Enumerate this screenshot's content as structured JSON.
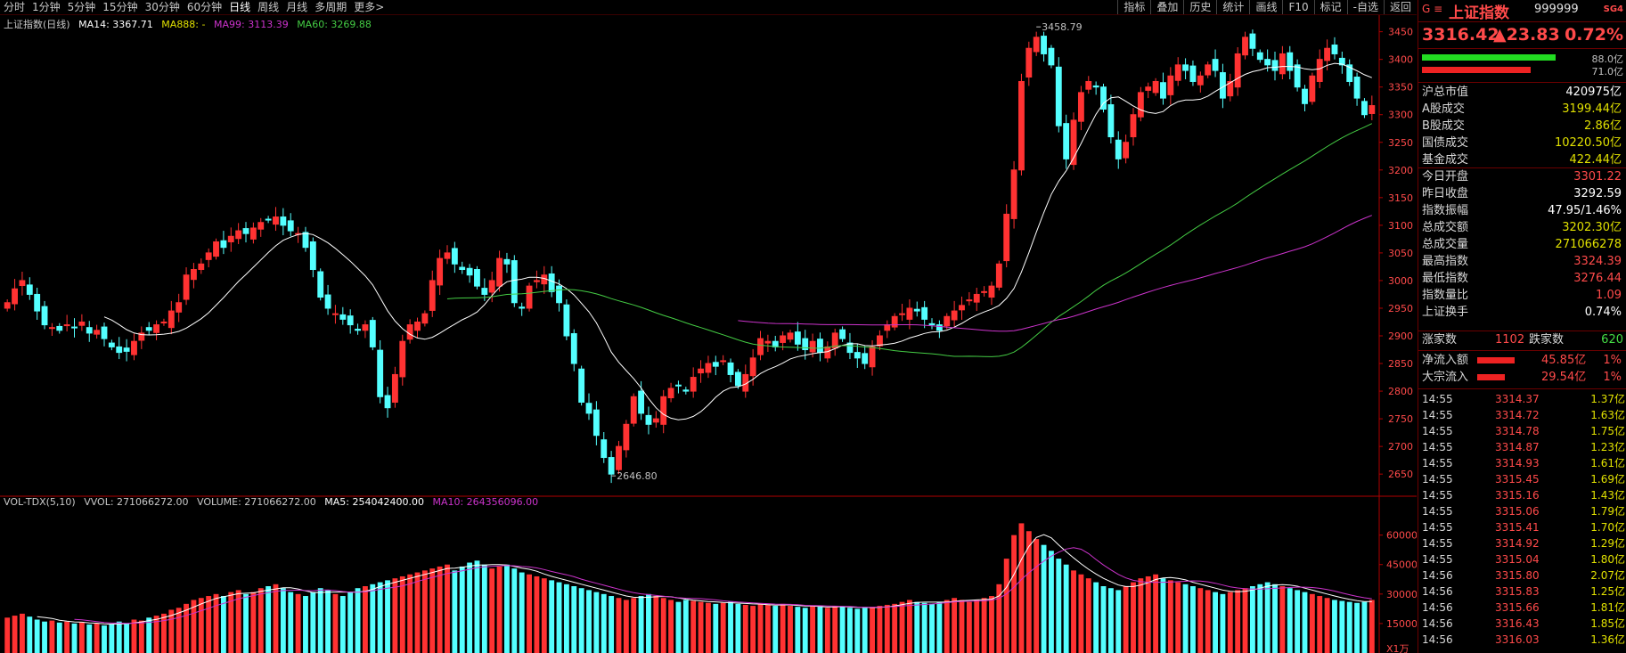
{
  "toolbar": {
    "periods": [
      "分时",
      "1分钟",
      "5分钟",
      "15分钟",
      "30分钟",
      "60分钟",
      "日线",
      "周线",
      "月线",
      "多周期",
      "更多>"
    ],
    "active_period": "日线",
    "tools": [
      "指标",
      "叠加",
      "历史",
      "统计",
      "画线",
      "F10",
      "标记",
      "-自选",
      "返回"
    ]
  },
  "legend": {
    "name": "上证指数(日线)",
    "ma14": "MA14: 3367.71",
    "ma888": "MA888: -",
    "ma99": "MA99: 3113.39",
    "ma60": "MA60: 3269.88"
  },
  "vol_legend": {
    "name": "VOL-TDX(5,10)",
    "vvol": "VVOL: 271066272.00",
    "volume": "VOLUME: 271066272.00",
    "ma5": "MA5: 254042400.00",
    "ma10": "MA10: 264356096.00",
    "unit": "X1万"
  },
  "colors": {
    "up": "#ff3232",
    "down": "#54ffff",
    "ma14": "#ffffff",
    "ma60": "#44cc44",
    "ma99": "#cc33cc",
    "axis": "#b00000"
  },
  "annotations": {
    "high": "3458.79",
    "low": "2646.80"
  },
  "chart_data": {
    "type": "candlestick",
    "title": "上证指数(日线)",
    "price_axis": {
      "ticks": [
        2650,
        2700,
        2750,
        2800,
        2850,
        2900,
        2950,
        3000,
        3050,
        3100,
        3150,
        3200,
        3250,
        3300,
        3350,
        3400,
        3450
      ],
      "ylim": [
        2610,
        3480
      ]
    },
    "volume_axis": {
      "ticks": [
        15000,
        30000,
        45000,
        60000
      ],
      "ylim": [
        0,
        68000
      ],
      "unit": "X1万"
    },
    "close": [
      2960,
      2985,
      3000,
      2975,
      2945,
      2920,
      2915,
      2910,
      2920,
      2915,
      2925,
      2905,
      2910,
      2895,
      2880,
      2870,
      2872,
      2890,
      2905,
      2910,
      2920,
      2925,
      2945,
      2960,
      3010,
      3020,
      3030,
      3050,
      3070,
      3060,
      3080,
      3090,
      3085,
      3095,
      3105,
      3110,
      3115,
      3100,
      3090,
      3085,
      3060,
      3020,
      2970,
      2950,
      2940,
      2930,
      2920,
      2910,
      2920,
      2880,
      2790,
      2770,
      2830,
      2890,
      2920,
      2925,
      2940,
      3000,
      3040,
      3050,
      3030,
      3020,
      3010,
      2990,
      2975,
      3000,
      3040,
      3030,
      2960,
      2950,
      2990,
      3000,
      3010,
      2980,
      2960,
      2900,
      2850,
      2780,
      2760,
      2720,
      2680,
      2650,
      2700,
      2740,
      2790,
      2760,
      2740,
      2750,
      2790,
      2805,
      2810,
      2800,
      2825,
      2840,
      2850,
      2845,
      2855,
      2830,
      2810,
      2830,
      2860,
      2895,
      2890,
      2880,
      2900,
      2905,
      2885,
      2875,
      2890,
      2870,
      2880,
      2905,
      2895,
      2870,
      2860,
      2850,
      2880,
      2900,
      2920,
      2935,
      2940,
      2950,
      2945,
      2930,
      2920,
      2910,
      2935,
      2945,
      2955,
      2965,
      2975,
      2980,
      2990,
      3030,
      3120,
      3200,
      3360,
      3420,
      3440,
      3410,
      3390,
      3280,
      3220,
      3290,
      3340,
      3360,
      3350,
      3310,
      3260,
      3220,
      3250,
      3300,
      3340,
      3350,
      3360,
      3330,
      3370,
      3390,
      3380,
      3360,
      3370,
      3390,
      3380,
      3330,
      3360,
      3410,
      3440,
      3420,
      3400,
      3390,
      3380,
      3410,
      3380,
      3350,
      3320,
      3370,
      3400,
      3420,
      3410,
      3390,
      3360,
      3330,
      3300,
      3316.42
    ],
    "volume": [
      18000,
      19000,
      20000,
      18500,
      17000,
      16000,
      16500,
      15500,
      16000,
      15000,
      15500,
      14500,
      15000,
      14000,
      14500,
      16000,
      15000,
      17000,
      16500,
      18000,
      19000,
      20000,
      22000,
      23000,
      25000,
      27000,
      28000,
      29000,
      30000,
      29000,
      31000,
      32000,
      30000,
      31000,
      33000,
      34000,
      35000,
      33000,
      31000,
      30000,
      29000,
      31000,
      33000,
      32000,
      30000,
      29000,
      31000,
      33000,
      34000,
      35000,
      36000,
      37000,
      38000,
      39000,
      40000,
      41000,
      42000,
      43000,
      44000,
      45000,
      42000,
      44000,
      46000,
      47000,
      45000,
      43000,
      44000,
      45000,
      43000,
      41000,
      40000,
      39000,
      38000,
      37000,
      36000,
      35000,
      34000,
      33000,
      32000,
      31000,
      30000,
      29000,
      28000,
      27000,
      28000,
      29000,
      30000,
      29000,
      28000,
      27000,
      26000,
      27000,
      26500,
      26000,
      25500,
      25000,
      25500,
      26000,
      25000,
      24500,
      24000,
      25000,
      24500,
      24000,
      25000,
      24000,
      23500,
      23000,
      24000,
      23500,
      23000,
      24000,
      23500,
      23000,
      22500,
      23000,
      23500,
      24000,
      24500,
      25000,
      26000,
      27000,
      26000,
      25500,
      25000,
      26000,
      27000,
      28000,
      27000,
      26000,
      27000,
      28000,
      29000,
      35000,
      48000,
      60000,
      66000,
      62000,
      58000,
      55000,
      52000,
      48000,
      45000,
      42000,
      40000,
      38000,
      36000,
      34000,
      33000,
      32000,
      34000,
      36000,
      38000,
      39000,
      40000,
      38000,
      37000,
      36000,
      35000,
      34000,
      33000,
      32000,
      31000,
      30000,
      31000,
      32000,
      33000,
      34000,
      35000,
      36000,
      35000,
      34000,
      33000,
      32000,
      31000,
      30000,
      29000,
      28000,
      27000,
      26500,
      26000,
      25500,
      26000,
      27000
    ]
  },
  "rpanel": {
    "name": "上证指数",
    "code": "999999",
    "marker": "G ≡",
    "tag": "SG4",
    "price": "3316.42",
    "change": "▲23.83",
    "pct": "0.72%",
    "bar1_val": "88.0亿",
    "bar2_val": "71.0亿",
    "bar1_fill": 1.0,
    "bar2_fill": 0.81,
    "stats": [
      {
        "k": "沪总市值",
        "v": "420975亿",
        "c": "#ffffff"
      },
      {
        "k": "A股成交",
        "v": "3199.44亿",
        "c": "#e0e000"
      },
      {
        "k": "B股成交",
        "v": "2.86亿",
        "c": "#e0e000"
      },
      {
        "k": "国债成交",
        "v": "10220.50亿",
        "c": "#e0e000"
      },
      {
        "k": "基金成交",
        "v": "422.44亿",
        "c": "#e0e000"
      },
      {
        "k": "今日开盘",
        "v": "3301.22",
        "c": "#ff4a4a"
      },
      {
        "k": "昨日收盘",
        "v": "3292.59",
        "c": "#ffffff"
      },
      {
        "k": "指数振幅",
        "v": "47.95/1.46%",
        "c": "#ffffff"
      },
      {
        "k": "总成交额",
        "v": "3202.30亿",
        "c": "#e0e000"
      },
      {
        "k": "总成交量",
        "v": "271066278",
        "c": "#e0e000"
      },
      {
        "k": "最高指数",
        "v": "3324.39",
        "c": "#ff4a4a"
      },
      {
        "k": "最低指数",
        "v": "3276.44",
        "c": "#ff4a4a"
      },
      {
        "k": "指数量比",
        "v": "1.09",
        "c": "#ff4a4a"
      },
      {
        "k": "上证换手",
        "v": "0.74%",
        "c": "#ffffff"
      }
    ],
    "updown": {
      "up_label": "涨家数",
      "up": "1102",
      "down_label": "跌家数",
      "down": "620"
    },
    "flows": [
      {
        "k": "净流入额",
        "v": "45.85亿",
        "p": "1%",
        "fill": 0.75
      },
      {
        "k": "大宗流入",
        "v": "29.54亿",
        "p": "1%",
        "fill": 0.55
      }
    ],
    "ticks": [
      {
        "t": "14:55",
        "p": "3314.37",
        "q": "1.37亿"
      },
      {
        "t": "14:55",
        "p": "3314.72",
        "q": "1.63亿"
      },
      {
        "t": "14:55",
        "p": "3314.78",
        "q": "1.75亿"
      },
      {
        "t": "14:55",
        "p": "3314.87",
        "q": "1.23亿"
      },
      {
        "t": "14:55",
        "p": "3314.93",
        "q": "1.61亿"
      },
      {
        "t": "14:55",
        "p": "3315.45",
        "q": "1.69亿"
      },
      {
        "t": "14:55",
        "p": "3315.16",
        "q": "1.43亿"
      },
      {
        "t": "14:55",
        "p": "3315.06",
        "q": "1.79亿"
      },
      {
        "t": "14:55",
        "p": "3315.41",
        "q": "1.70亿"
      },
      {
        "t": "14:55",
        "p": "3314.92",
        "q": "1.29亿"
      },
      {
        "t": "14:55",
        "p": "3315.04",
        "q": "1.80亿"
      },
      {
        "t": "14:56",
        "p": "3315.80",
        "q": "2.07亿"
      },
      {
        "t": "14:56",
        "p": "3315.83",
        "q": "1.25亿"
      },
      {
        "t": "14:56",
        "p": "3315.66",
        "q": "1.81亿"
      },
      {
        "t": "14:56",
        "p": "3316.43",
        "q": "1.85亿"
      },
      {
        "t": "14:56",
        "p": "3316.03",
        "q": "1.36亿"
      }
    ]
  }
}
